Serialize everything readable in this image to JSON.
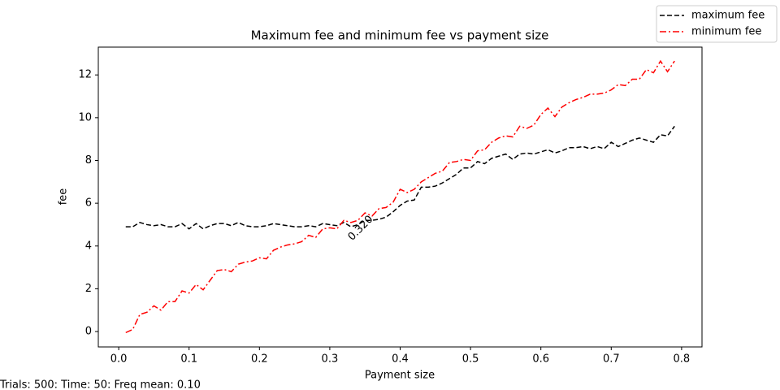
{
  "chart_data": {
    "type": "line",
    "title": "Maximum fee and minimum fee vs payment size",
    "xlabel": "Payment size",
    "ylabel": "fee",
    "footer": "Trials: 500: Time: 50: Freq mean: 0.10",
    "annotation": "0.320",
    "legend": "upper right",
    "x": [
      0.01,
      0.02,
      0.03,
      0.04,
      0.05,
      0.06,
      0.07,
      0.08,
      0.09,
      0.1,
      0.11,
      0.12,
      0.13,
      0.14,
      0.15,
      0.16,
      0.17,
      0.18,
      0.19,
      0.2,
      0.21,
      0.22,
      0.23,
      0.24,
      0.25,
      0.26,
      0.27,
      0.28,
      0.29,
      0.3,
      0.31,
      0.32,
      0.33,
      0.34,
      0.35,
      0.36,
      0.37,
      0.38,
      0.39,
      0.4,
      0.41,
      0.42,
      0.43,
      0.44,
      0.45,
      0.46,
      0.47,
      0.48,
      0.49,
      0.5,
      0.51,
      0.52,
      0.53,
      0.54,
      0.55,
      0.56,
      0.57,
      0.58,
      0.59,
      0.6,
      0.61,
      0.62,
      0.63,
      0.64,
      0.65,
      0.66,
      0.67,
      0.68,
      0.69,
      0.7,
      0.71,
      0.72,
      0.73,
      0.74,
      0.75,
      0.76,
      0.77,
      0.78,
      0.79
    ],
    "series": [
      {
        "name": "maximum fee",
        "color": "#000000",
        "linestyle": "dashed",
        "values": [
          4.9,
          4.9,
          5.1,
          5.0,
          4.95,
          5.0,
          4.9,
          4.9,
          5.05,
          4.8,
          5.05,
          4.8,
          4.95,
          5.05,
          5.05,
          4.95,
          5.1,
          4.95,
          4.9,
          4.9,
          4.95,
          5.05,
          5.0,
          4.95,
          4.9,
          4.9,
          4.95,
          4.9,
          5.05,
          5.0,
          4.95,
          5.1,
          4.9,
          5.0,
          5.2,
          5.2,
          5.25,
          5.35,
          5.6,
          5.9,
          6.1,
          6.15,
          6.75,
          6.75,
          6.8,
          6.95,
          7.15,
          7.35,
          7.65,
          7.65,
          7.95,
          7.85,
          8.1,
          8.2,
          8.3,
          8.05,
          8.3,
          8.35,
          8.3,
          8.4,
          8.5,
          8.35,
          8.45,
          8.6,
          8.6,
          8.65,
          8.55,
          8.65,
          8.55,
          8.85,
          8.65,
          8.8,
          8.95,
          9.05,
          8.95,
          8.85,
          9.2,
          9.15,
          9.6
        ]
      },
      {
        "name": "minimum fee",
        "color": "#ff0000",
        "linestyle": "dashdot",
        "values": [
          -0.05,
          0.1,
          0.8,
          0.9,
          1.2,
          1.0,
          1.4,
          1.4,
          1.9,
          1.8,
          2.2,
          1.95,
          2.4,
          2.85,
          2.9,
          2.8,
          3.15,
          3.25,
          3.3,
          3.45,
          3.4,
          3.8,
          3.95,
          4.05,
          4.1,
          4.2,
          4.5,
          4.4,
          4.8,
          4.85,
          4.8,
          5.2,
          5.1,
          5.2,
          5.55,
          5.4,
          5.75,
          5.8,
          6.05,
          6.65,
          6.5,
          6.65,
          7.0,
          7.2,
          7.4,
          7.5,
          7.9,
          7.95,
          8.05,
          8.0,
          8.45,
          8.5,
          8.85,
          9.05,
          9.15,
          9.1,
          9.6,
          9.5,
          9.65,
          10.15,
          10.45,
          10.05,
          10.5,
          10.7,
          10.85,
          10.95,
          11.1,
          11.1,
          11.15,
          11.3,
          11.55,
          11.5,
          11.8,
          11.8,
          12.25,
          12.1,
          12.65,
          12.15,
          12.65
        ]
      }
    ],
    "xlim": [
      -0.029,
      0.829
    ],
    "ylim": [
      -0.72,
      13.3
    ],
    "xticks": [
      {
        "value": 0,
        "label": "0.0"
      },
      0.1,
      0.2,
      0.3,
      0.4,
      0.5,
      0.6,
      0.7,
      0.8
    ],
    "yticks": [
      0,
      2,
      4,
      6,
      8,
      10,
      12
    ],
    "grid": false
  }
}
